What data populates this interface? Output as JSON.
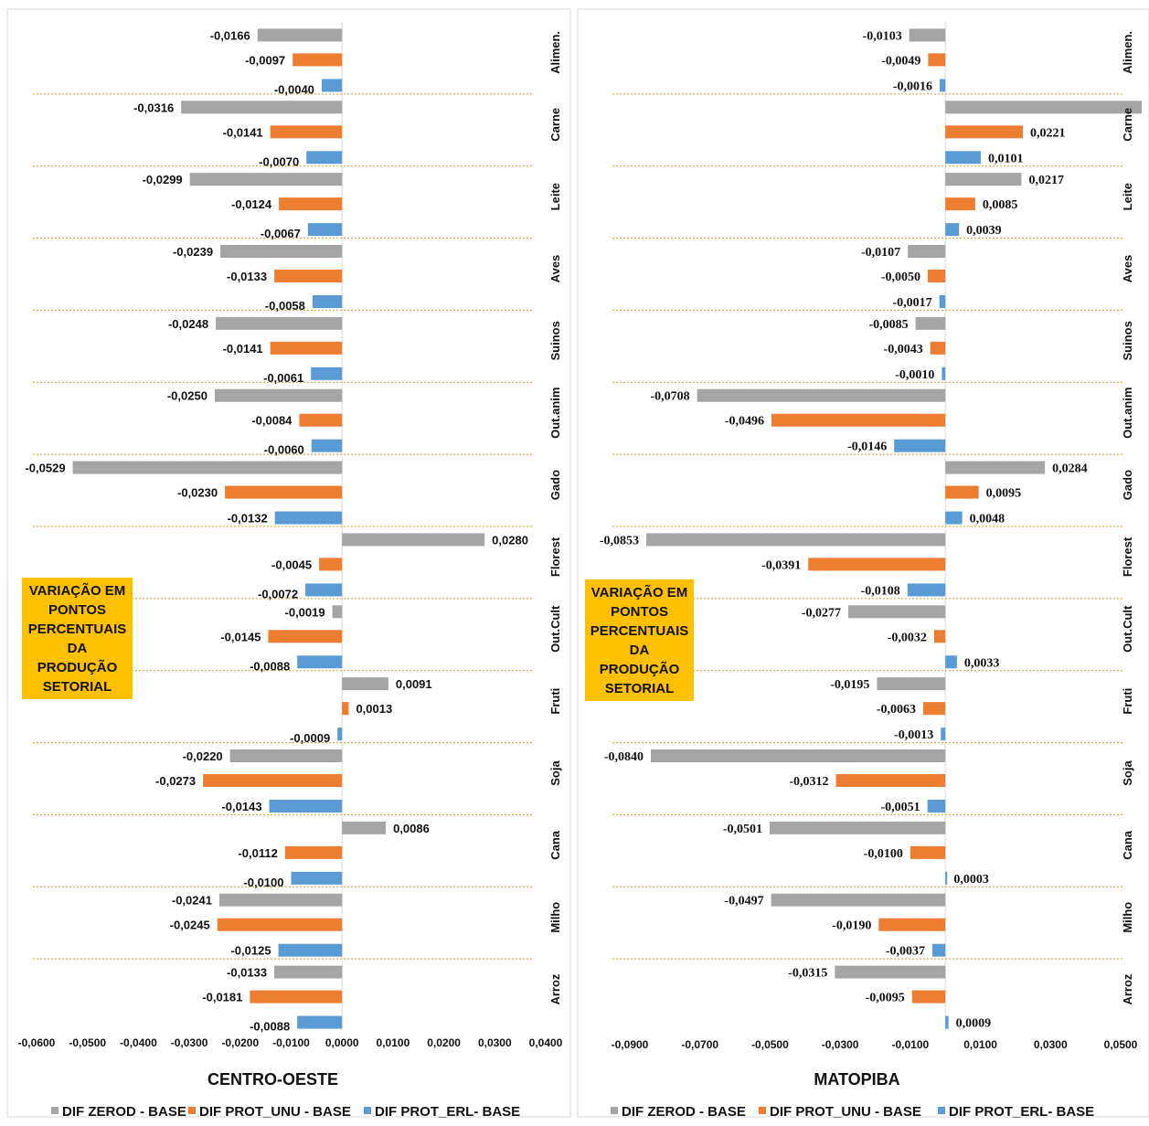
{
  "chart_data": [
    {
      "type": "bar",
      "orientation": "horizontal",
      "title": "CENTRO-OESTE",
      "categories": [
        "Alimen.",
        "Carne",
        "Leite",
        "Aves",
        "Suinos",
        "Out.anim",
        "Gado",
        "Florest",
        "Out.Cult",
        "Fruti",
        "Soja",
        "Cana",
        "Milho",
        "Arroz"
      ],
      "series": [
        {
          "name": "DIF ZEROD - BASE",
          "color": "#a5a5a5",
          "values": [
            -0.0166,
            -0.0316,
            -0.0299,
            -0.0239,
            -0.0248,
            -0.025,
            -0.0529,
            0.028,
            -0.0019,
            0.0091,
            -0.022,
            0.0086,
            -0.0241,
            -0.0133
          ],
          "labels": [
            "-0,0166",
            "-0,0316",
            "-0,0299",
            "-0,0239",
            "-0,0248",
            "-0,0250",
            "-0,0529",
            "0,0280",
            "-0,0019",
            "0,0091",
            "-0,0220",
            "0,0086",
            "-0,0241",
            "-0,0133"
          ]
        },
        {
          "name": "DIF PROT_UNU - BASE",
          "color": "#ed7d31",
          "values": [
            -0.0097,
            -0.0141,
            -0.0124,
            -0.0133,
            -0.0141,
            -0.0084,
            -0.023,
            -0.0045,
            -0.0145,
            0.0013,
            -0.0273,
            -0.0112,
            -0.0245,
            -0.0181
          ],
          "labels": [
            "-0,0097",
            "-0,0141",
            "-0,0124",
            "-0,0133",
            "-0,0141",
            "-0,0084",
            "-0,0230",
            "-0,0045",
            "-0,0145",
            "0,0013",
            "-0,0273",
            "-0,0112",
            "-0,0245",
            "-0,0181"
          ]
        },
        {
          "name": "DIF PROT_ERL- BASE",
          "color": "#5b9bd5",
          "values": [
            -0.004,
            -0.007,
            -0.0067,
            -0.0058,
            -0.0061,
            -0.006,
            -0.0132,
            -0.0072,
            -0.0088,
            -0.0009,
            -0.0143,
            -0.01,
            -0.0125,
            -0.0088
          ],
          "labels": [
            "-0,0040",
            "-0,0070",
            "-0,0067",
            "-0,0058",
            "-0,0061",
            "-0,0060",
            "-0,0132",
            "-0,0072",
            "-0,0088",
            "-0,0009",
            "-0,0143",
            "-0,0100",
            "-0,0125",
            "-0,0088"
          ]
        }
      ],
      "xlim": [
        -0.06,
        0.04
      ],
      "xticks": [
        -0.06,
        -0.05,
        -0.04,
        -0.03,
        -0.02,
        -0.01,
        0.0,
        0.01,
        0.02,
        0.03,
        0.04
      ],
      "xtick_labels": [
        "-0,0600",
        "-0,0500",
        "-0,0400",
        "-0,0300",
        "-0,0200",
        "-0,0100",
        "0,0000",
        "0,0100",
        "0,0200",
        "0,0300",
        "0,0400"
      ],
      "annotation": [
        "VARIAÇÃO EM",
        "PONTOS",
        "PERCENTUAIS",
        "DA",
        "PRODUÇÃO",
        "SETORIAL"
      ],
      "annotation_color": "#ffc000",
      "separator_color": "#c9a227",
      "legend_position": "bottom",
      "grid": false
    },
    {
      "type": "bar",
      "orientation": "horizontal",
      "title": "MATOPIBA",
      "categories": [
        "Alimen.",
        "Carne",
        "Leite",
        "Aves",
        "Suinos",
        "Out.anim",
        "Gado",
        "Florest",
        "Out.Cult",
        "Fruti",
        "Soja",
        "Cana",
        "Milho",
        "Arroz"
      ],
      "series": [
        {
          "name": "DIF ZEROD - BASE",
          "color": "#a5a5a5",
          "values": [
            -0.0103,
            0.056,
            0.0217,
            -0.0107,
            -0.0085,
            -0.0708,
            0.0284,
            -0.0853,
            -0.0277,
            -0.0195,
            -0.084,
            -0.0501,
            -0.0497,
            -0.0315
          ],
          "labels": [
            "-0,0103",
            "",
            "0,0217",
            "-0,0107",
            "-0,0085",
            "-0,0708",
            "0,0284",
            "-0,0853",
            "-0,0277",
            "-0,0195",
            "-0,0840",
            "-0,0501",
            "-0,0497",
            "-0,0315"
          ]
        },
        {
          "name": "DIF PROT_UNU - BASE",
          "color": "#ed7d31",
          "values": [
            -0.0049,
            0.0221,
            0.0085,
            -0.005,
            -0.0043,
            -0.0496,
            0.0095,
            -0.0391,
            -0.0032,
            -0.0063,
            -0.0312,
            -0.01,
            -0.019,
            -0.0095
          ],
          "labels": [
            "-0,0049",
            "0,0221",
            "0,0085",
            "-0,0050",
            "-0,0043",
            "-0,0496",
            "0,0095",
            "-0,0391",
            "-0,0032",
            "-0,0063",
            "-0,0312",
            "-0,0100",
            "-0,0190",
            "-0,0095"
          ]
        },
        {
          "name": "DIF PROT_ERL- BASE",
          "color": "#5b9bd5",
          "values": [
            -0.0016,
            0.0101,
            0.0039,
            -0.0017,
            -0.001,
            -0.0146,
            0.0048,
            -0.0108,
            0.0033,
            -0.0013,
            -0.0051,
            0.0003,
            -0.0037,
            0.0009
          ],
          "labels": [
            "-0,0016",
            "0,0101",
            "0,0039",
            "-0,0017",
            "-0,0010",
            "-0,0146",
            "0,0048",
            "-0,0108",
            "0,0033",
            "-0,0013",
            "-0,0051",
            "0,0003",
            "-0,0037",
            "0,0009"
          ]
        }
      ],
      "xlim": [
        -0.09,
        0.05
      ],
      "xticks": [
        -0.09,
        -0.07,
        -0.05,
        -0.03,
        -0.01,
        0.01,
        0.03,
        0.05
      ],
      "xtick_labels": [
        "-0,0900",
        "-0,0700",
        "-0,0500",
        "-0,0300",
        "-0,0100",
        "0,0100",
        "0,0300",
        "0,0500"
      ],
      "annotation": [
        "VARIAÇÃO EM",
        "PONTOS",
        "PERCENTUAIS",
        "DA",
        "PRODUÇÃO",
        "SETORIAL"
      ],
      "annotation_color": "#ffc000",
      "separator_color": "#c9a227",
      "legend_position": "bottom",
      "grid": false
    }
  ]
}
